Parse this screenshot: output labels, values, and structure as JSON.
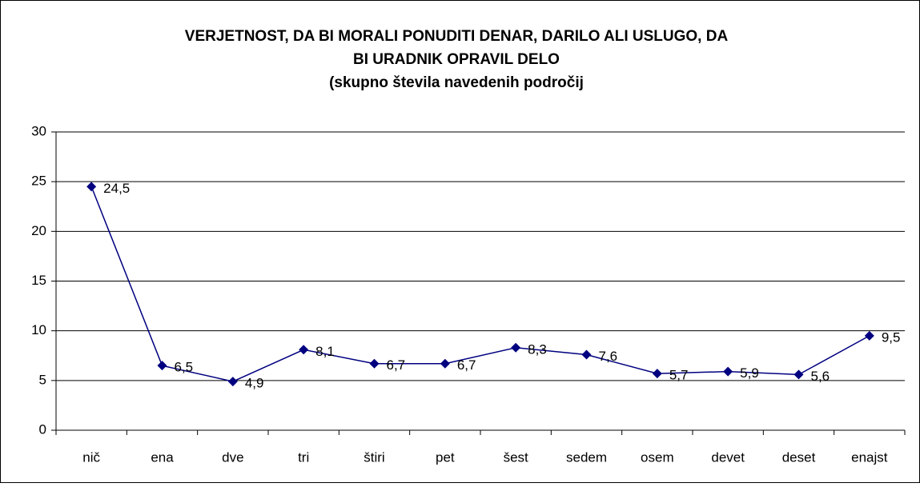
{
  "chart_data": {
    "type": "line",
    "title": [
      "VERJETNOST, DA BI MORALI PONUDITI DENAR, DARILO ALI USLUGO, DA",
      "BI URADNIK OPRAVIL DELO",
      "(skupno števila navedenih področij"
    ],
    "categories": [
      "nič",
      "ena",
      "dve",
      "tri",
      "štiri",
      "pet",
      "šest",
      "sedem",
      "osem",
      "devet",
      "deset",
      "enajst"
    ],
    "series": [
      {
        "name": "",
        "color": "#000080",
        "values": [
          24.5,
          6.5,
          4.9,
          8.1,
          6.7,
          6.7,
          8.3,
          7.6,
          5.7,
          5.9,
          5.6,
          9.5
        ],
        "value_labels": [
          "24,5",
          "6,5",
          "4,9",
          "8,1",
          "6,7",
          "6,7",
          "8,3",
          "7,6",
          "5,7",
          "5,9",
          "5,6",
          "9,5"
        ]
      }
    ],
    "ylim": [
      0,
      30
    ],
    "yticks": [
      0,
      5,
      10,
      15,
      20,
      25,
      30
    ],
    "grid": true
  }
}
